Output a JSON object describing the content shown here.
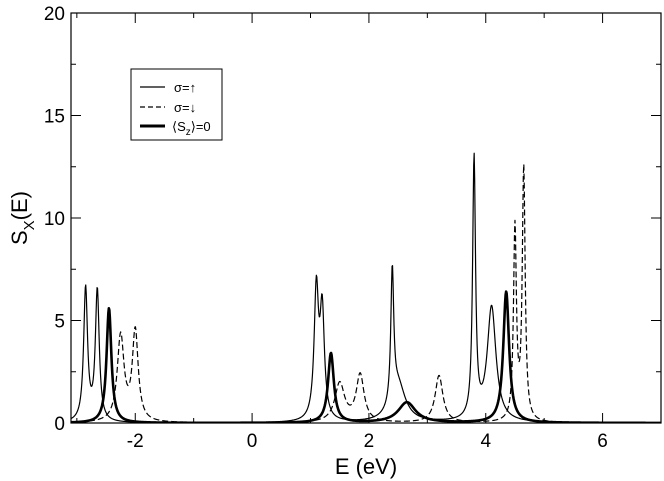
{
  "chart_data": {
    "type": "line",
    "xlabel": "E (eV)",
    "ylabel": {
      "base": "S",
      "sub": "X",
      "rest": "(E)"
    },
    "xlim": [
      -3.1,
      7.0
    ],
    "ylim": [
      0,
      20
    ],
    "xticks": [
      -2,
      0,
      2,
      4,
      6
    ],
    "yticks": [
      0,
      5,
      10,
      15,
      20
    ],
    "grid": false,
    "legend_position": "top-left",
    "series": [
      {
        "name": "σ=↑",
        "style": "solid",
        "peaks": [
          {
            "x": -2.85,
            "height": 6.5,
            "width": 0.04
          },
          {
            "x": -2.65,
            "height": 6.4,
            "width": 0.04
          },
          {
            "x": 1.1,
            "height": 6.3,
            "width": 0.045
          },
          {
            "x": 1.2,
            "height": 5.2,
            "width": 0.045
          },
          {
            "x": 2.4,
            "height": 6.5,
            "width": 0.03
          },
          {
            "x": 3.8,
            "height": 12.7,
            "width": 0.03
          },
          {
            "x": 2.5,
            "height": 1.8,
            "width": 0.15
          },
          {
            "x": 4.1,
            "height": 5.6,
            "width": 0.09
          }
        ]
      },
      {
        "name": "σ=↓",
        "style": "dashed",
        "peaks": [
          {
            "x": -2.25,
            "height": 4.2,
            "width": 0.07
          },
          {
            "x": -2.0,
            "height": 4.4,
            "width": 0.06
          },
          {
            "x": 1.5,
            "height": 1.9,
            "width": 0.1
          },
          {
            "x": 1.85,
            "height": 2.3,
            "width": 0.08
          },
          {
            "x": 3.2,
            "height": 2.3,
            "width": 0.08
          },
          {
            "x": 4.5,
            "height": 9.4,
            "width": 0.03
          },
          {
            "x": 4.65,
            "height": 12.3,
            "width": 0.03
          }
        ]
      },
      {
        "name": "⟨S_z⟩=0",
        "style": "thick",
        "peaks": [
          {
            "x": -2.45,
            "height": 5.6,
            "width": 0.05
          },
          {
            "x": 1.35,
            "height": 3.4,
            "width": 0.06
          },
          {
            "x": 2.65,
            "height": 1.0,
            "width": 0.18
          },
          {
            "x": 4.35,
            "height": 6.4,
            "width": 0.06
          }
        ]
      }
    ],
    "legend": [
      {
        "text": "σ=↑",
        "style": "solid"
      },
      {
        "text": "σ=↓",
        "style": "dashed"
      },
      {
        "text_pre": "⟨S",
        "text_sub": "z",
        "text_post": "⟩=0",
        "style": "thick"
      }
    ]
  }
}
